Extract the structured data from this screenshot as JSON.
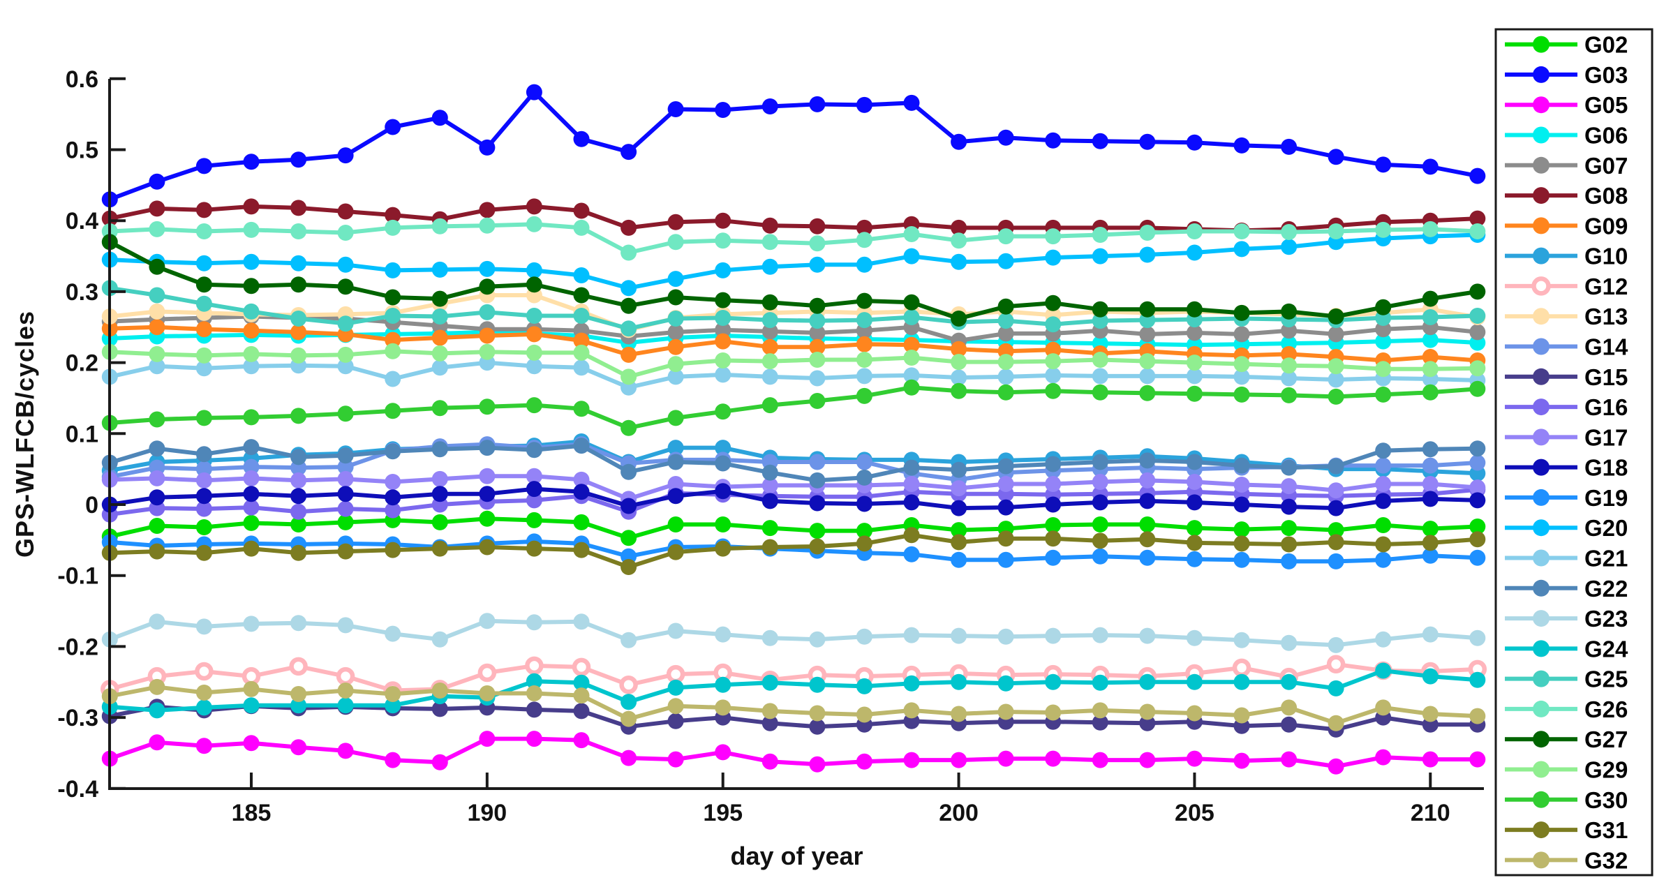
{
  "chart_data": {
    "type": "line",
    "title": "",
    "xlabel": "day of year",
    "ylabel": "GPS-WLFCB/cycles",
    "grid": false,
    "legend_position": "outside-right",
    "marker": "filled-circle",
    "axis_color": "#1a1a1a",
    "xlim": [
      181.6,
      211.6
    ],
    "ylim": [
      -0.4,
      0.6
    ],
    "xticks": [
      "185",
      "190",
      "195",
      "200",
      "205",
      "210"
    ],
    "xtick_values": [
      185,
      190,
      195,
      200,
      205,
      210
    ],
    "yticks": [
      "0.6",
      "0.5",
      "0.4",
      "0.3",
      "0.2",
      "0.1",
      "0",
      "-0.1",
      "-0.2",
      "-0.3",
      "-0.4"
    ],
    "ytick_values": [
      0.6,
      0.5,
      0.4,
      0.3,
      0.2,
      0.1,
      0,
      -0.1,
      -0.2,
      -0.3,
      -0.4
    ],
    "x": [
      182,
      183,
      184,
      185,
      186,
      187,
      188,
      189,
      190,
      191,
      192,
      193,
      194,
      195,
      196,
      197,
      198,
      199,
      200,
      201,
      202,
      203,
      204,
      205,
      206,
      207,
      208,
      209,
      210,
      211
    ],
    "series": [
      {
        "name": "G02",
        "color": "#00DE00",
        "open_marker": false,
        "values": [
          -0.045,
          -0.03,
          -0.032,
          -0.026,
          -0.028,
          -0.025,
          -0.022,
          -0.025,
          -0.02,
          -0.022,
          -0.025,
          -0.047,
          -0.028,
          -0.028,
          -0.033,
          -0.037,
          -0.037,
          -0.029,
          -0.036,
          -0.034,
          -0.029,
          -0.028,
          -0.028,
          -0.033,
          -0.035,
          -0.033,
          -0.036,
          -0.029,
          -0.034,
          -0.031
        ]
      },
      {
        "name": "G03",
        "color": "#0A0AFF",
        "open_marker": false,
        "values": [
          0.43,
          0.455,
          0.477,
          0.483,
          0.486,
          0.492,
          0.532,
          0.545,
          0.503,
          0.581,
          0.515,
          0.497,
          0.557,
          0.556,
          0.561,
          0.564,
          0.563,
          0.566,
          0.511,
          0.517,
          0.513,
          0.512,
          0.511,
          0.51,
          0.506,
          0.504,
          0.49,
          0.479,
          0.476,
          0.463
        ]
      },
      {
        "name": "G05",
        "color": "#FF00FF",
        "open_marker": false,
        "values": [
          -0.358,
          -0.335,
          -0.34,
          -0.336,
          -0.342,
          -0.347,
          -0.36,
          -0.363,
          -0.33,
          -0.33,
          -0.332,
          -0.357,
          -0.359,
          -0.349,
          -0.362,
          -0.366,
          -0.362,
          -0.36,
          -0.36,
          -0.358,
          -0.358,
          -0.36,
          -0.36,
          -0.358,
          -0.361,
          -0.359,
          -0.369,
          -0.356,
          -0.359,
          -0.359
        ]
      },
      {
        "name": "G06",
        "color": "#00EFEF",
        "open_marker": false,
        "values": [
          0.234,
          0.237,
          0.238,
          0.239,
          0.238,
          0.239,
          0.24,
          0.241,
          0.243,
          0.241,
          0.238,
          0.228,
          0.235,
          0.238,
          0.236,
          0.234,
          0.233,
          0.232,
          0.23,
          0.229,
          0.228,
          0.227,
          0.226,
          0.225,
          0.226,
          0.227,
          0.228,
          0.23,
          0.232,
          0.228
        ]
      },
      {
        "name": "G07",
        "color": "#8C8C8C",
        "open_marker": false,
        "values": [
          0.258,
          0.261,
          0.263,
          0.265,
          0.263,
          0.262,
          0.257,
          0.252,
          0.247,
          0.247,
          0.245,
          0.237,
          0.243,
          0.246,
          0.244,
          0.242,
          0.245,
          0.25,
          0.231,
          0.241,
          0.241,
          0.245,
          0.24,
          0.242,
          0.24,
          0.245,
          0.24,
          0.247,
          0.25,
          0.243
        ]
      },
      {
        "name": "G08",
        "color": "#8B1A2B",
        "open_marker": false,
        "values": [
          0.403,
          0.417,
          0.415,
          0.42,
          0.418,
          0.413,
          0.408,
          0.402,
          0.415,
          0.42,
          0.414,
          0.39,
          0.398,
          0.4,
          0.393,
          0.392,
          0.39,
          0.395,
          0.39,
          0.39,
          0.39,
          0.39,
          0.39,
          0.388,
          0.386,
          0.388,
          0.393,
          0.398,
          0.4,
          0.403
        ]
      },
      {
        "name": "G09",
        "color": "#FF851E",
        "open_marker": false,
        "values": [
          0.248,
          0.25,
          0.247,
          0.245,
          0.243,
          0.24,
          0.232,
          0.235,
          0.238,
          0.24,
          0.231,
          0.211,
          0.222,
          0.23,
          0.222,
          0.222,
          0.226,
          0.225,
          0.219,
          0.216,
          0.218,
          0.213,
          0.216,
          0.212,
          0.21,
          0.212,
          0.208,
          0.203,
          0.208,
          0.203
        ]
      },
      {
        "name": "G10",
        "color": "#2BA3DC",
        "open_marker": false,
        "values": [
          0.048,
          0.06,
          0.062,
          0.065,
          0.07,
          0.072,
          0.078,
          0.08,
          0.082,
          0.083,
          0.089,
          0.06,
          0.08,
          0.08,
          0.066,
          0.064,
          0.063,
          0.063,
          0.06,
          0.062,
          0.064,
          0.066,
          0.068,
          0.065,
          0.06,
          0.055,
          0.05,
          0.05,
          0.047,
          0.044
        ]
      },
      {
        "name": "G12",
        "color": "#FFB5BC",
        "open_marker": true,
        "values": [
          -0.26,
          -0.242,
          -0.235,
          -0.242,
          -0.228,
          -0.242,
          -0.262,
          -0.26,
          -0.237,
          -0.227,
          -0.229,
          -0.254,
          -0.239,
          -0.237,
          -0.247,
          -0.24,
          -0.242,
          -0.24,
          -0.238,
          -0.24,
          -0.239,
          -0.24,
          -0.242,
          -0.238,
          -0.23,
          -0.243,
          -0.225,
          -0.234,
          -0.235,
          -0.232
        ]
      },
      {
        "name": "G13",
        "color": "#FFDFA8",
        "open_marker": false,
        "values": [
          0.265,
          0.272,
          0.27,
          0.268,
          0.267,
          0.268,
          0.27,
          0.283,
          0.295,
          0.295,
          0.272,
          0.246,
          0.263,
          0.268,
          0.27,
          0.272,
          0.27,
          0.272,
          0.268,
          0.272,
          0.267,
          0.272,
          0.27,
          0.272,
          0.27,
          0.268,
          0.266,
          0.27,
          0.275,
          0.264
        ]
      },
      {
        "name": "G14",
        "color": "#6C93E8",
        "open_marker": false,
        "values": [
          0.039,
          0.052,
          0.05,
          0.053,
          0.052,
          0.053,
          0.076,
          0.082,
          0.085,
          0.08,
          0.085,
          0.058,
          0.063,
          0.063,
          0.06,
          0.06,
          0.06,
          0.044,
          0.035,
          0.045,
          0.048,
          0.05,
          0.052,
          0.05,
          0.052,
          0.053,
          0.055,
          0.055,
          0.055,
          0.059
        ]
      },
      {
        "name": "G15",
        "color": "#473D8B",
        "open_marker": false,
        "values": [
          -0.298,
          -0.285,
          -0.29,
          -0.284,
          -0.287,
          -0.285,
          -0.287,
          -0.288,
          -0.286,
          -0.289,
          -0.291,
          -0.313,
          -0.305,
          -0.3,
          -0.308,
          -0.313,
          -0.31,
          -0.305,
          -0.308,
          -0.306,
          -0.306,
          -0.307,
          -0.308,
          -0.306,
          -0.312,
          -0.31,
          -0.317,
          -0.3,
          -0.31,
          -0.31
        ]
      },
      {
        "name": "G16",
        "color": "#7B68EE",
        "open_marker": false,
        "values": [
          -0.014,
          -0.005,
          -0.006,
          -0.004,
          -0.01,
          -0.006,
          -0.008,
          0.0,
          0.004,
          0.006,
          0.012,
          -0.01,
          0.016,
          0.014,
          0.012,
          0.011,
          0.011,
          0.018,
          0.015,
          0.015,
          0.014,
          0.015,
          0.016,
          0.018,
          0.015,
          0.013,
          0.012,
          0.014,
          0.015,
          0.021
        ]
      },
      {
        "name": "G17",
        "color": "#9483F7",
        "open_marker": false,
        "values": [
          0.035,
          0.037,
          0.034,
          0.037,
          0.034,
          0.036,
          0.032,
          0.036,
          0.04,
          0.04,
          0.035,
          0.008,
          0.029,
          0.025,
          0.027,
          0.027,
          0.027,
          0.029,
          0.023,
          0.029,
          0.029,
          0.032,
          0.034,
          0.032,
          0.028,
          0.026,
          0.02,
          0.029,
          0.029,
          0.024
        ]
      },
      {
        "name": "G18",
        "color": "#0E0EB8",
        "open_marker": false,
        "values": [
          0.0,
          0.01,
          0.012,
          0.015,
          0.012,
          0.015,
          0.01,
          0.015,
          0.015,
          0.022,
          0.018,
          -0.002,
          0.012,
          0.019,
          0.005,
          0.002,
          0.001,
          0.003,
          -0.005,
          -0.004,
          0.0,
          0.003,
          0.005,
          0.003,
          0.0,
          -0.003,
          -0.005,
          0.005,
          0.008,
          0.006
        ]
      },
      {
        "name": "G19",
        "color": "#1E90FF",
        "open_marker": false,
        "values": [
          -0.053,
          -0.058,
          -0.056,
          -0.055,
          -0.056,
          -0.055,
          -0.056,
          -0.06,
          -0.055,
          -0.052,
          -0.055,
          -0.073,
          -0.06,
          -0.059,
          -0.062,
          -0.065,
          -0.068,
          -0.07,
          -0.078,
          -0.078,
          -0.075,
          -0.073,
          -0.075,
          -0.077,
          -0.078,
          -0.08,
          -0.08,
          -0.078,
          -0.072,
          -0.075
        ]
      },
      {
        "name": "G20",
        "color": "#00BFFF",
        "open_marker": false,
        "values": [
          0.345,
          0.342,
          0.34,
          0.342,
          0.34,
          0.338,
          0.33,
          0.331,
          0.332,
          0.33,
          0.323,
          0.305,
          0.318,
          0.33,
          0.335,
          0.338,
          0.338,
          0.35,
          0.342,
          0.343,
          0.348,
          0.35,
          0.352,
          0.355,
          0.36,
          0.363,
          0.37,
          0.375,
          0.378,
          0.38
        ]
      },
      {
        "name": "G21",
        "color": "#87CEEB",
        "open_marker": false,
        "values": [
          0.18,
          0.195,
          0.192,
          0.195,
          0.196,
          0.195,
          0.177,
          0.193,
          0.2,
          0.195,
          0.193,
          0.165,
          0.18,
          0.183,
          0.18,
          0.178,
          0.181,
          0.182,
          0.179,
          0.18,
          0.182,
          0.181,
          0.181,
          0.181,
          0.18,
          0.178,
          0.176,
          0.178,
          0.177,
          0.175
        ]
      },
      {
        "name": "G22",
        "color": "#4F86B8",
        "open_marker": false,
        "values": [
          0.059,
          0.079,
          0.071,
          0.081,
          0.067,
          0.069,
          0.075,
          0.078,
          0.08,
          0.077,
          0.083,
          0.046,
          0.06,
          0.058,
          0.045,
          0.034,
          0.038,
          0.052,
          0.049,
          0.054,
          0.057,
          0.06,
          0.062,
          0.06,
          0.055,
          0.052,
          0.054,
          0.076,
          0.078,
          0.079
        ]
      },
      {
        "name": "G23",
        "color": "#ADD8E6",
        "open_marker": false,
        "values": [
          -0.19,
          -0.165,
          -0.172,
          -0.168,
          -0.167,
          -0.17,
          -0.182,
          -0.19,
          -0.164,
          -0.166,
          -0.165,
          -0.191,
          -0.178,
          -0.183,
          -0.188,
          -0.19,
          -0.186,
          -0.184,
          -0.185,
          -0.186,
          -0.185,
          -0.184,
          -0.185,
          -0.188,
          -0.191,
          -0.195,
          -0.198,
          -0.19,
          -0.183,
          -0.188
        ]
      },
      {
        "name": "G24",
        "color": "#00C5CD",
        "open_marker": false,
        "values": [
          -0.285,
          -0.29,
          -0.286,
          -0.283,
          -0.283,
          -0.283,
          -0.283,
          -0.27,
          -0.272,
          -0.249,
          -0.251,
          -0.278,
          -0.258,
          -0.254,
          -0.251,
          -0.254,
          -0.256,
          -0.252,
          -0.25,
          -0.252,
          -0.25,
          -0.251,
          -0.25,
          -0.25,
          -0.25,
          -0.25,
          -0.259,
          -0.234,
          -0.242,
          -0.247
        ]
      },
      {
        "name": "G25",
        "color": "#45CFC0",
        "open_marker": false,
        "values": [
          0.305,
          0.295,
          0.283,
          0.272,
          0.262,
          0.255,
          0.266,
          0.265,
          0.271,
          0.266,
          0.266,
          0.248,
          0.262,
          0.263,
          0.26,
          0.259,
          0.26,
          0.264,
          0.257,
          0.259,
          0.254,
          0.259,
          0.26,
          0.261,
          0.262,
          0.261,
          0.26,
          0.263,
          0.264,
          0.266
        ]
      },
      {
        "name": "G26",
        "color": "#70E8C2",
        "open_marker": false,
        "values": [
          0.385,
          0.388,
          0.385,
          0.387,
          0.385,
          0.383,
          0.39,
          0.392,
          0.393,
          0.395,
          0.39,
          0.355,
          0.37,
          0.372,
          0.37,
          0.368,
          0.373,
          0.381,
          0.372,
          0.378,
          0.378,
          0.38,
          0.383,
          0.385,
          0.385,
          0.384,
          0.385,
          0.387,
          0.388,
          0.385
        ]
      },
      {
        "name": "G27",
        "color": "#006400",
        "open_marker": false,
        "values": [
          0.37,
          0.335,
          0.31,
          0.308,
          0.31,
          0.307,
          0.292,
          0.29,
          0.307,
          0.31,
          0.295,
          0.28,
          0.292,
          0.288,
          0.285,
          0.28,
          0.287,
          0.285,
          0.262,
          0.279,
          0.284,
          0.275,
          0.275,
          0.275,
          0.27,
          0.272,
          0.265,
          0.278,
          0.29,
          0.3
        ]
      },
      {
        "name": "G29",
        "color": "#90EE90",
        "open_marker": false,
        "values": [
          0.215,
          0.212,
          0.21,
          0.212,
          0.21,
          0.211,
          0.216,
          0.213,
          0.215,
          0.214,
          0.214,
          0.18,
          0.198,
          0.203,
          0.202,
          0.204,
          0.204,
          0.207,
          0.201,
          0.201,
          0.202,
          0.204,
          0.202,
          0.2,
          0.198,
          0.196,
          0.195,
          0.191,
          0.191,
          0.192
        ]
      },
      {
        "name": "G30",
        "color": "#32CD32",
        "open_marker": false,
        "values": [
          0.115,
          0.12,
          0.122,
          0.123,
          0.125,
          0.128,
          0.132,
          0.136,
          0.138,
          0.14,
          0.135,
          0.108,
          0.122,
          0.131,
          0.14,
          0.146,
          0.153,
          0.165,
          0.16,
          0.158,
          0.16,
          0.158,
          0.157,
          0.156,
          0.155,
          0.154,
          0.152,
          0.155,
          0.158,
          0.163
        ]
      },
      {
        "name": "G31",
        "color": "#7C7C21",
        "open_marker": false,
        "values": [
          -0.068,
          -0.066,
          -0.068,
          -0.062,
          -0.068,
          -0.066,
          -0.064,
          -0.062,
          -0.06,
          -0.062,
          -0.064,
          -0.088,
          -0.067,
          -0.062,
          -0.06,
          -0.059,
          -0.055,
          -0.043,
          -0.053,
          -0.048,
          -0.048,
          -0.051,
          -0.049,
          -0.054,
          -0.055,
          -0.056,
          -0.053,
          -0.056,
          -0.054,
          -0.049
        ]
      },
      {
        "name": "G32",
        "color": "#BDB76B",
        "open_marker": false,
        "values": [
          -0.27,
          -0.257,
          -0.265,
          -0.26,
          -0.267,
          -0.262,
          -0.267,
          -0.262,
          -0.266,
          -0.266,
          -0.269,
          -0.302,
          -0.284,
          -0.286,
          -0.291,
          -0.294,
          -0.296,
          -0.29,
          -0.295,
          -0.292,
          -0.293,
          -0.29,
          -0.292,
          -0.294,
          -0.297,
          -0.286,
          -0.308,
          -0.286,
          -0.295,
          -0.298
        ]
      }
    ]
  }
}
